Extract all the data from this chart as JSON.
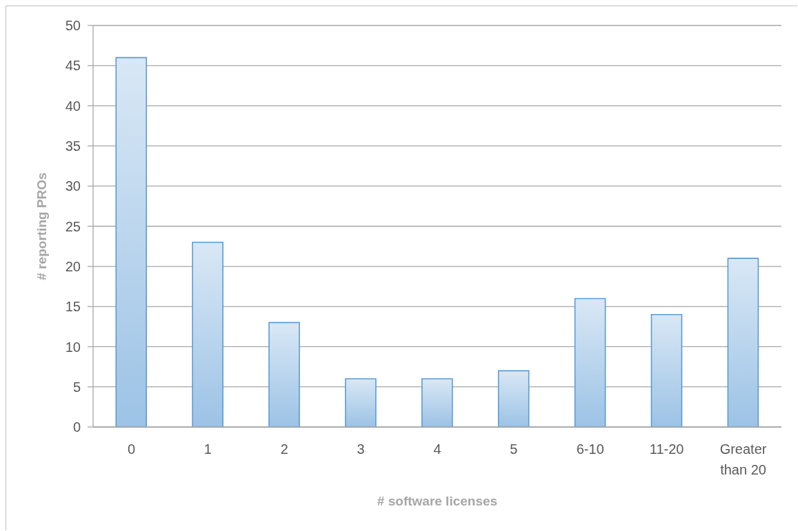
{
  "chart_data": {
    "type": "bar",
    "xlabel": "# software licenses",
    "ylabel": "# reporting PROs",
    "categories": [
      "0",
      "1",
      "2",
      "3",
      "4",
      "5",
      "6-10",
      "11-20",
      "Greater than 20"
    ],
    "values": [
      46,
      23,
      13,
      6,
      6,
      7,
      16,
      14,
      21
    ],
    "color": "#5b9bd5",
    "ylim": [
      0,
      50
    ],
    "yticks": [
      0,
      5,
      10,
      15,
      20,
      25,
      30,
      35,
      40,
      45,
      50
    ],
    "grid": "y"
  }
}
